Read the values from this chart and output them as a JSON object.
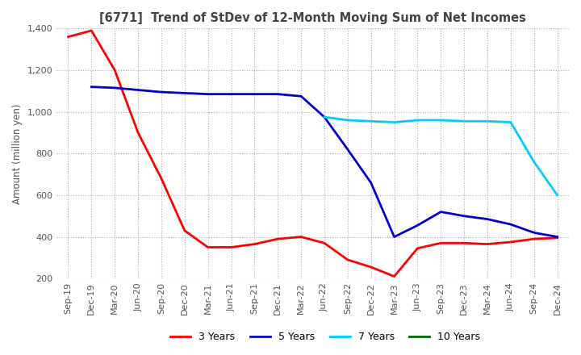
{
  "title": "[6771]  Trend of StDev of 12-Month Moving Sum of Net Incomes",
  "ylabel": "Amount (million yen)",
  "ylim": [
    200,
    1400
  ],
  "yticks": [
    200,
    400,
    600,
    800,
    1000,
    1200,
    1400
  ],
  "background_color": "#ffffff",
  "grid_color": "#aaaaaa",
  "series": {
    "3 Years": {
      "color": "#ff0000",
      "data": {
        "Sep-19": 1360,
        "Dec-19": 1390,
        "Mar-20": 1200,
        "Jun-20": 900,
        "Sep-20": 680,
        "Dec-20": 430,
        "Mar-21": 350,
        "Jun-21": 350,
        "Sep-21": 365,
        "Dec-21": 390,
        "Mar-22": 400,
        "Jun-22": 370,
        "Sep-22": 290,
        "Dec-22": 255,
        "Mar-23": 210,
        "Jun-23": 345,
        "Sep-23": 370,
        "Dec-23": 370,
        "Mar-24": 365,
        "Jun-24": 375,
        "Sep-24": 390,
        "Dec-24": 395
      }
    },
    "5 Years": {
      "color": "#0000cc",
      "data": {
        "Dec-19": 1120,
        "Mar-20": 1115,
        "Jun-20": 1105,
        "Sep-20": 1095,
        "Dec-20": 1090,
        "Mar-21": 1085,
        "Jun-21": 1085,
        "Sep-21": 1085,
        "Dec-21": 1085,
        "Mar-22": 1075,
        "Jun-22": 975,
        "Sep-22": 820,
        "Dec-22": 660,
        "Mar-23": 400,
        "Jun-23": 455,
        "Sep-23": 520,
        "Dec-23": 500,
        "Mar-24": 485,
        "Jun-24": 460,
        "Sep-24": 420,
        "Dec-24": 400
      }
    },
    "7 Years": {
      "color": "#00ccff",
      "data": {
        "Jun-22": 975,
        "Sep-22": 960,
        "Dec-22": 955,
        "Mar-23": 950,
        "Jun-23": 960,
        "Sep-23": 960,
        "Dec-23": 955,
        "Mar-24": 955,
        "Jun-24": 950,
        "Sep-24": 760,
        "Dec-24": 600
      }
    },
    "10 Years": {
      "color": "#006600",
      "data": {}
    }
  },
  "x_labels": [
    "Sep-19",
    "Dec-19",
    "Mar-20",
    "Jun-20",
    "Sep-20",
    "Dec-20",
    "Mar-21",
    "Jun-21",
    "Sep-21",
    "Dec-21",
    "Mar-22",
    "Jun-22",
    "Sep-22",
    "Dec-22",
    "Mar-23",
    "Jun-23",
    "Sep-23",
    "Dec-23",
    "Mar-24",
    "Jun-24",
    "Sep-24",
    "Dec-24"
  ],
  "legend_order": [
    "3 Years",
    "5 Years",
    "7 Years",
    "10 Years"
  ],
  "legend_colors": [
    "#ff0000",
    "#0000cc",
    "#00ccff",
    "#006600"
  ]
}
